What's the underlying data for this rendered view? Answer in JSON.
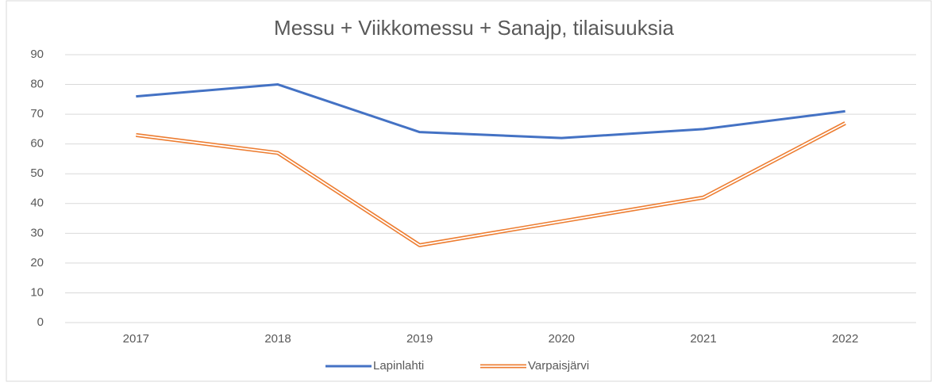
{
  "chart_data": {
    "type": "line",
    "title": "Messu + Viikkomessu + Sanajp, tilaisuuksia",
    "categories": [
      "2017",
      "2018",
      "2019",
      "2020",
      "2021",
      "2022"
    ],
    "series": [
      {
        "name": "Lapinlahti",
        "color": "#4472c4",
        "values": [
          76,
          80,
          64,
          62,
          65,
          71
        ]
      },
      {
        "name": "Varpaisjärvi",
        "color": "#ed7d31",
        "values": [
          63,
          57,
          26,
          34,
          42,
          67
        ]
      }
    ],
    "ylim": [
      0,
      90
    ],
    "yticks": [
      0,
      10,
      20,
      30,
      40,
      50,
      60,
      70,
      80,
      90
    ],
    "grid": true,
    "legend": "bottom"
  }
}
